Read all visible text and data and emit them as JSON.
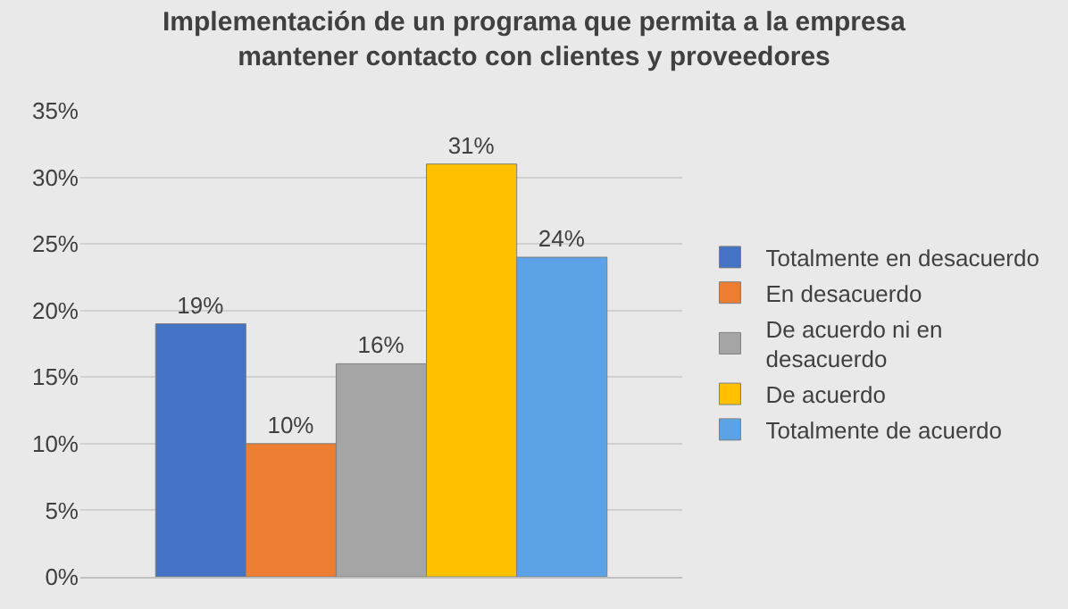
{
  "chart_data": {
    "type": "bar",
    "title": "Implementación de un programa que permita a la empresa\nmantener contacto con clientes y proveedores",
    "categories": [
      null
    ],
    "series": [
      {
        "name": "Totalmente en desacuerdo",
        "color": "#4472c4",
        "values": [
          19
        ],
        "value_labels": [
          "19%"
        ]
      },
      {
        "name": "En desacuerdo",
        "color": "#ed7d31",
        "values": [
          10
        ],
        "value_labels": [
          "10%"
        ]
      },
      {
        "name": "De acuerdo ni en desacuerdo",
        "color": "#a5a5a5",
        "values": [
          16
        ],
        "value_labels": [
          "16%"
        ]
      },
      {
        "name": "De acuerdo",
        "color": "#ffc000",
        "values": [
          31
        ],
        "value_labels": [
          "31%"
        ]
      },
      {
        "name": "Totalmente de acuerdo",
        "color": "#5ba3e6",
        "values": [
          24
        ],
        "value_labels": [
          "24%"
        ]
      }
    ],
    "ylim": [
      0,
      35
    ],
    "yticks": [
      {
        "value": 0,
        "label": "0%"
      },
      {
        "value": 5,
        "label": "5%"
      },
      {
        "value": 10,
        "label": "10%"
      },
      {
        "value": 15,
        "label": "15%"
      },
      {
        "value": 20,
        "label": "20%"
      },
      {
        "value": 25,
        "label": "25%"
      },
      {
        "value": 30,
        "label": "30%"
      },
      {
        "value": 35,
        "label": "35%"
      }
    ],
    "grid": "y",
    "legend": "right"
  }
}
